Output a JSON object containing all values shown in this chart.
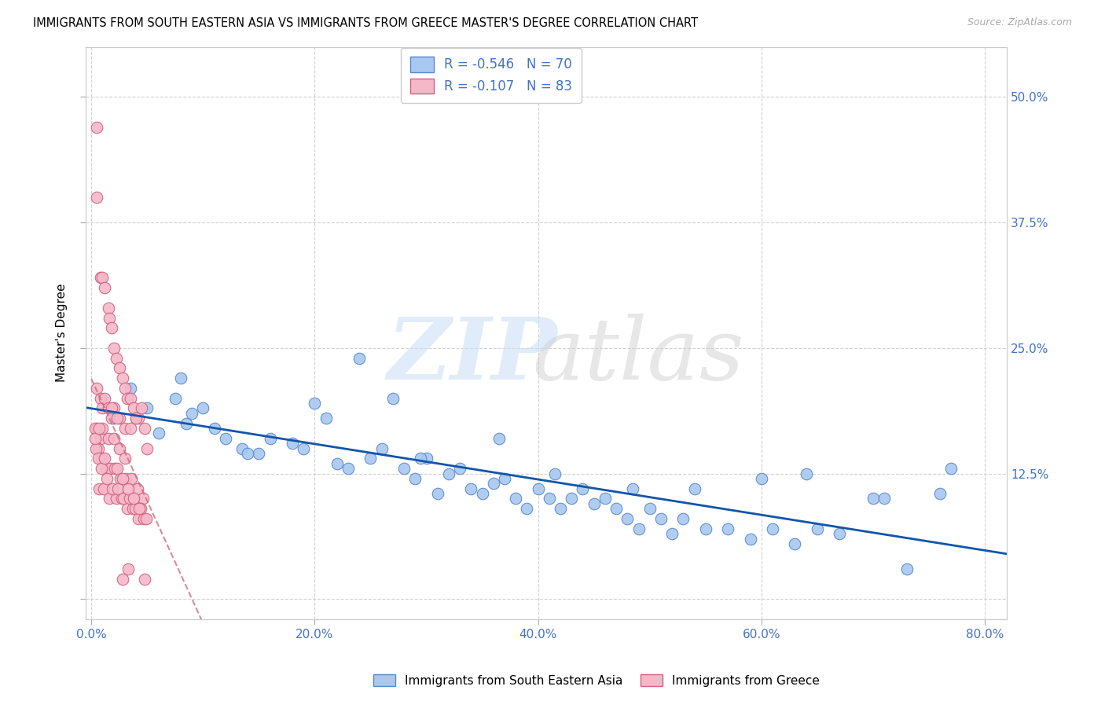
{
  "title": "IMMIGRANTS FROM SOUTH EASTERN ASIA VS IMMIGRANTS FROM GREECE MASTER'S DEGREE CORRELATION CHART",
  "source": "Source: ZipAtlas.com",
  "ylabel": "Master's Degree",
  "right_yticks": [
    "50.0%",
    "37.5%",
    "25.0%",
    "12.5%"
  ],
  "right_ytick_vals": [
    50.0,
    37.5,
    25.0,
    12.5
  ],
  "legend_blue_r": "-0.546",
  "legend_blue_n": "70",
  "legend_pink_r": "-0.107",
  "legend_pink_n": "83",
  "blue_color": "#a8c8f0",
  "pink_color": "#f5b8c8",
  "blue_edge_color": "#5588cc",
  "pink_edge_color": "#d06080",
  "blue_line_color": "#1155aa",
  "pink_line_color": "#cc6677",
  "blue_scatter_x": [
    2.0,
    3.5,
    5.0,
    6.0,
    7.5,
    8.5,
    9.0,
    10.0,
    11.0,
    12.0,
    13.5,
    15.0,
    16.0,
    18.0,
    20.0,
    21.0,
    22.0,
    23.0,
    24.0,
    25.0,
    26.0,
    27.0,
    28.0,
    29.0,
    30.0,
    31.0,
    32.0,
    33.0,
    34.0,
    35.0,
    36.0,
    37.0,
    38.0,
    39.0,
    40.0,
    41.0,
    42.0,
    43.0,
    44.0,
    45.0,
    46.0,
    47.0,
    48.0,
    49.0,
    50.0,
    51.0,
    52.0,
    53.0,
    55.0,
    57.0,
    59.0,
    61.0,
    63.0,
    65.0,
    67.0,
    70.0,
    73.0,
    76.0,
    8.0,
    14.0,
    19.0,
    29.5,
    36.5,
    41.5,
    48.5,
    54.0,
    60.0,
    64.0,
    71.0,
    77.0
  ],
  "blue_scatter_y": [
    18.0,
    21.0,
    19.0,
    16.5,
    20.0,
    17.5,
    18.5,
    19.0,
    17.0,
    16.0,
    15.0,
    14.5,
    16.0,
    15.5,
    19.5,
    18.0,
    13.5,
    13.0,
    24.0,
    14.0,
    15.0,
    20.0,
    13.0,
    12.0,
    14.0,
    10.5,
    12.5,
    13.0,
    11.0,
    10.5,
    11.5,
    12.0,
    10.0,
    9.0,
    11.0,
    10.0,
    9.0,
    10.0,
    11.0,
    9.5,
    10.0,
    9.0,
    8.0,
    7.0,
    9.0,
    8.0,
    6.5,
    8.0,
    7.0,
    7.0,
    6.0,
    7.0,
    5.5,
    7.0,
    6.5,
    10.0,
    3.0,
    10.5,
    22.0,
    14.5,
    15.0,
    14.0,
    16.0,
    12.5,
    11.0,
    11.0,
    12.0,
    12.5,
    10.0,
    13.0
  ],
  "pink_scatter_x": [
    0.5,
    0.5,
    0.8,
    1.0,
    1.2,
    1.5,
    1.6,
    1.8,
    2.0,
    2.2,
    2.5,
    2.8,
    3.0,
    3.2,
    3.5,
    3.8,
    4.0,
    4.2,
    4.5,
    4.8,
    0.5,
    0.8,
    1.0,
    1.2,
    1.5,
    1.8,
    2.0,
    2.5,
    3.0,
    3.5,
    4.0,
    0.5,
    0.8,
    1.0,
    1.5,
    2.0,
    2.5,
    3.0,
    5.0,
    0.6,
    0.9,
    1.3,
    1.7,
    2.1,
    2.6,
    3.1,
    3.6,
    4.1,
    4.6,
    0.7,
    1.1,
    1.6,
    2.2,
    2.7,
    3.2,
    3.7,
    4.2,
    4.7,
    0.3,
    0.4,
    0.6,
    0.9,
    1.4,
    1.9,
    2.4,
    2.9,
    3.4,
    3.9,
    4.4,
    4.9,
    0.3,
    0.7,
    1.2,
    2.3,
    2.8,
    3.3,
    3.8,
    4.3,
    4.8,
    1.8,
    2.3,
    2.8,
    3.3
  ],
  "pink_scatter_y": [
    47.0,
    40.0,
    32.0,
    32.0,
    31.0,
    29.0,
    28.0,
    27.0,
    25.0,
    24.0,
    23.0,
    22.0,
    21.0,
    20.0,
    20.0,
    19.0,
    18.0,
    18.0,
    19.0,
    17.0,
    21.0,
    20.0,
    19.0,
    20.0,
    19.0,
    18.0,
    19.0,
    18.0,
    17.0,
    17.0,
    18.0,
    17.0,
    16.0,
    17.0,
    16.0,
    16.0,
    15.0,
    14.0,
    15.0,
    15.0,
    14.0,
    13.0,
    13.0,
    13.0,
    12.0,
    12.0,
    12.0,
    11.0,
    10.0,
    11.0,
    11.0,
    10.0,
    10.0,
    10.0,
    9.0,
    9.0,
    8.0,
    8.0,
    17.0,
    15.0,
    14.0,
    13.0,
    12.0,
    11.0,
    11.0,
    10.0,
    10.0,
    9.0,
    9.0,
    8.0,
    16.0,
    17.0,
    14.0,
    13.0,
    12.0,
    11.0,
    10.0,
    9.0,
    2.0,
    19.0,
    18.0,
    2.0,
    3.0
  ],
  "xlim": [
    -0.5,
    82.0
  ],
  "ylim": [
    -2.0,
    55.0
  ],
  "xticks": [
    0.0,
    20.0,
    40.0,
    60.0,
    80.0
  ],
  "xtick_labels": [
    "0.0%",
    "20.0%",
    "40.0%",
    "60.0%",
    "80.0%"
  ],
  "yticks": [
    0.0,
    12.5,
    25.0,
    37.5,
    50.0
  ]
}
